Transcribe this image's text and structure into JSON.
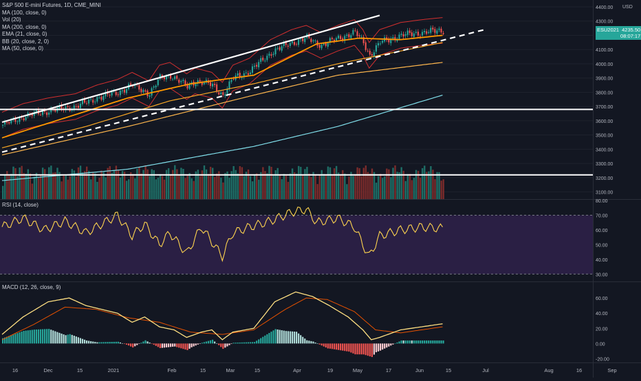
{
  "header": {
    "symbol_line": "S&P 500 E-mini Futures, 1D, CME_MINI",
    "currency": "USD"
  },
  "legend": [
    "MA (100, close, 0)",
    "Vol (20)",
    "MA (200, close, 0)",
    "EMA (21, close, 0)",
    "BB (20, close, 2, 0)",
    "MA (50, close, 0)"
  ],
  "price_tag": {
    "symbol": "ESU2021",
    "price": "4235.50",
    "countdown": "08:07:17",
    "color": "#26a69a"
  },
  "panes": {
    "rsi_title": "RSI (14, close)",
    "macd_title": "MACD (12, 26, close, 9)"
  },
  "colors": {
    "up": "#26a69a",
    "down": "#ef5350",
    "ma100": "#ffb74d",
    "ma200": "#80deea",
    "ema21": "#ff9800",
    "bb": "#d32f2f",
    "ma50": "#f9a825",
    "rsi": "#ffd54f",
    "rsi_band": "#2a1f44",
    "macd": "#ffe082",
    "signal": "#e65100",
    "line_white": "#ffffff"
  },
  "chart_data": [
    {
      "type": "line",
      "title": "S&P 500 E-mini Futures, 1D, CME_MINI",
      "ylabel": "USD",
      "ylim": [
        3050,
        4400
      ],
      "y_ticks": [
        "4400.00",
        "4300.00",
        "4200.00",
        "4100.00",
        "4000.00",
        "3900.00",
        "3800.00",
        "3700.00",
        "3600.00",
        "3500.00",
        "3400.00",
        "3300.00",
        "3200.00",
        "3100.00"
      ],
      "x_ticks": [
        "16",
        "Dec",
        "15",
        "2021",
        "Feb",
        "15",
        "Mar",
        "15",
        "Apr",
        "19",
        "May",
        "17",
        "Jun",
        "15",
        "Jul",
        "Aug",
        "16",
        "Sep"
      ],
      "close_anchors": [
        [
          0,
          3570
        ],
        [
          10,
          3630
        ],
        [
          22,
          3670
        ],
        [
          35,
          3700
        ],
        [
          45,
          3760
        ],
        [
          55,
          3800
        ],
        [
          62,
          3850
        ],
        [
          70,
          3790
        ],
        [
          75,
          3900
        ],
        [
          80,
          3920
        ],
        [
          88,
          3840
        ],
        [
          92,
          3880
        ],
        [
          100,
          3850
        ],
        [
          105,
          3780
        ],
        [
          110,
          3900
        ],
        [
          118,
          3950
        ],
        [
          128,
          4080
        ],
        [
          138,
          4150
        ],
        [
          145,
          4180
        ],
        [
          152,
          4130
        ],
        [
          160,
          4180
        ],
        [
          168,
          4220
        ],
        [
          172,
          4150
        ],
        [
          175,
          4060
        ],
        [
          180,
          4150
        ],
        [
          190,
          4200
        ],
        [
          200,
          4220
        ],
        [
          210,
          4235
        ]
      ],
      "series": [
        {
          "name": "MA (100, close, 0)",
          "anchors": [
            [
              0,
              3360
            ],
            [
              60,
              3560
            ],
            [
              120,
              3780
            ],
            [
              160,
              3920
            ],
            [
              210,
              4010
            ]
          ]
        },
        {
          "name": "MA (200, close, 0)",
          "anchors": [
            [
              0,
              3180
            ],
            [
              60,
              3260
            ],
            [
              120,
              3420
            ],
            [
              160,
              3560
            ],
            [
              210,
              3780
            ]
          ]
        },
        {
          "name": "EMA (21, close, 0)",
          "anchors": [
            [
              0,
              3480
            ],
            [
              30,
              3620
            ],
            [
              60,
              3760
            ],
            [
              90,
              3860
            ],
            [
              120,
              3920
            ],
            [
              150,
              4140
            ],
            [
              170,
              4180
            ],
            [
              190,
              4170
            ],
            [
              210,
              4200
            ]
          ]
        },
        {
          "name": "MA (50, close, 0)",
          "anchors": [
            [
              0,
              3410
            ],
            [
              40,
              3560
            ],
            [
              80,
              3740
            ],
            [
              120,
              3860
            ],
            [
              160,
              4000
            ],
            [
              210,
              4150
            ]
          ]
        }
      ],
      "trendlines": [
        {
          "label": "channel top",
          "from": [
            0,
            3590
          ],
          "to": [
            180,
            4340
          ]
        },
        {
          "label": "channel bottom (dashed)",
          "from": [
            0,
            3380
          ],
          "to": [
            230,
            4240
          ]
        },
        {
          "label": "horizontal level",
          "value": 3680
        },
        {
          "label": "horizontal level",
          "value": 3220
        }
      ]
    },
    {
      "type": "line",
      "title": "RSI (14, close)",
      "ylim": [
        25,
        80
      ],
      "y_ticks": [
        "80.00",
        "70.00",
        "60.00",
        "50.00",
        "40.00",
        "30.00"
      ],
      "bands": [
        30,
        70
      ],
      "anchors": [
        [
          0,
          62
        ],
        [
          10,
          68
        ],
        [
          20,
          60
        ],
        [
          30,
          66
        ],
        [
          40,
          58
        ],
        [
          55,
          70
        ],
        [
          62,
          56
        ],
        [
          68,
          64
        ],
        [
          75,
          50
        ],
        [
          80,
          58
        ],
        [
          88,
          44
        ],
        [
          95,
          62
        ],
        [
          105,
          42
        ],
        [
          110,
          58
        ],
        [
          118,
          62
        ],
        [
          128,
          66
        ],
        [
          138,
          72
        ],
        [
          145,
          74
        ],
        [
          150,
          65
        ],
        [
          160,
          68
        ],
        [
          168,
          62
        ],
        [
          172,
          50
        ],
        [
          175,
          42
        ],
        [
          180,
          56
        ],
        [
          190,
          60
        ],
        [
          200,
          62
        ],
        [
          210,
          61
        ]
      ]
    },
    {
      "type": "line",
      "title": "MACD (12, 26, close, 9)",
      "ylim": [
        -25,
        80
      ],
      "y_ticks": [
        "60.00",
        "40.00",
        "20.00",
        "0.00",
        "-20.00"
      ],
      "macd_anchors": [
        [
          0,
          12
        ],
        [
          10,
          35
        ],
        [
          22,
          55
        ],
        [
          32,
          60
        ],
        [
          40,
          50
        ],
        [
          55,
          40
        ],
        [
          62,
          28
        ],
        [
          68,
          35
        ],
        [
          75,
          22
        ],
        [
          82,
          18
        ],
        [
          88,
          8
        ],
        [
          95,
          15
        ],
        [
          100,
          18
        ],
        [
          105,
          5
        ],
        [
          110,
          15
        ],
        [
          120,
          20
        ],
        [
          130,
          55
        ],
        [
          140,
          68
        ],
        [
          148,
          62
        ],
        [
          156,
          50
        ],
        [
          165,
          35
        ],
        [
          172,
          18
        ],
        [
          176,
          5
        ],
        [
          180,
          8
        ],
        [
          190,
          18
        ],
        [
          200,
          22
        ],
        [
          210,
          26
        ]
      ],
      "signal_anchors": [
        [
          0,
          5
        ],
        [
          15,
          25
        ],
        [
          30,
          48
        ],
        [
          45,
          45
        ],
        [
          60,
          34
        ],
        [
          75,
          28
        ],
        [
          90,
          15
        ],
        [
          105,
          12
        ],
        [
          120,
          18
        ],
        [
          135,
          45
        ],
        [
          145,
          60
        ],
        [
          155,
          58
        ],
        [
          168,
          42
        ],
        [
          178,
          18
        ],
        [
          190,
          14
        ],
        [
          200,
          18
        ],
        [
          210,
          22
        ]
      ]
    }
  ]
}
